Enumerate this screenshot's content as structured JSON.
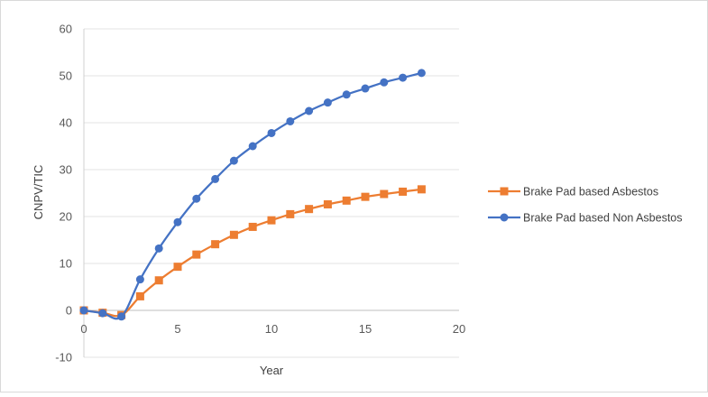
{
  "chart_data": {
    "type": "line",
    "xlabel": "Year",
    "ylabel": "CNPV/TIC",
    "xlim": [
      0,
      20
    ],
    "ylim": [
      -10,
      60
    ],
    "x_ticks": [
      0,
      5,
      10,
      15,
      20
    ],
    "y_ticks": [
      -10,
      0,
      10,
      20,
      30,
      40,
      50,
      60
    ],
    "grid": "horizontal",
    "legend_position": "right",
    "x": [
      0,
      1,
      2,
      3,
      4,
      5,
      6,
      7,
      8,
      9,
      10,
      11,
      12,
      13,
      14,
      15,
      16,
      17,
      18
    ],
    "series": [
      {
        "name": "Brake Pad based Asbestos",
        "marker": "square",
        "color": "#ED7D31",
        "values": [
          0,
          -0.5,
          -1,
          3,
          6.4,
          9.3,
          11.9,
          14.1,
          16.1,
          17.8,
          19.2,
          20.5,
          21.6,
          22.6,
          23.4,
          24.2,
          24.8,
          25.3,
          25.8
        ]
      },
      {
        "name": "Brake Pad based Non Asbestos",
        "marker": "circle",
        "color": "#4472C4",
        "values": [
          0,
          -0.6,
          -1.3,
          6.6,
          13.2,
          18.8,
          23.8,
          28,
          31.9,
          35,
          37.8,
          40.3,
          42.5,
          44.3,
          46,
          47.3,
          48.6,
          49.6,
          50.6
        ]
      }
    ]
  }
}
